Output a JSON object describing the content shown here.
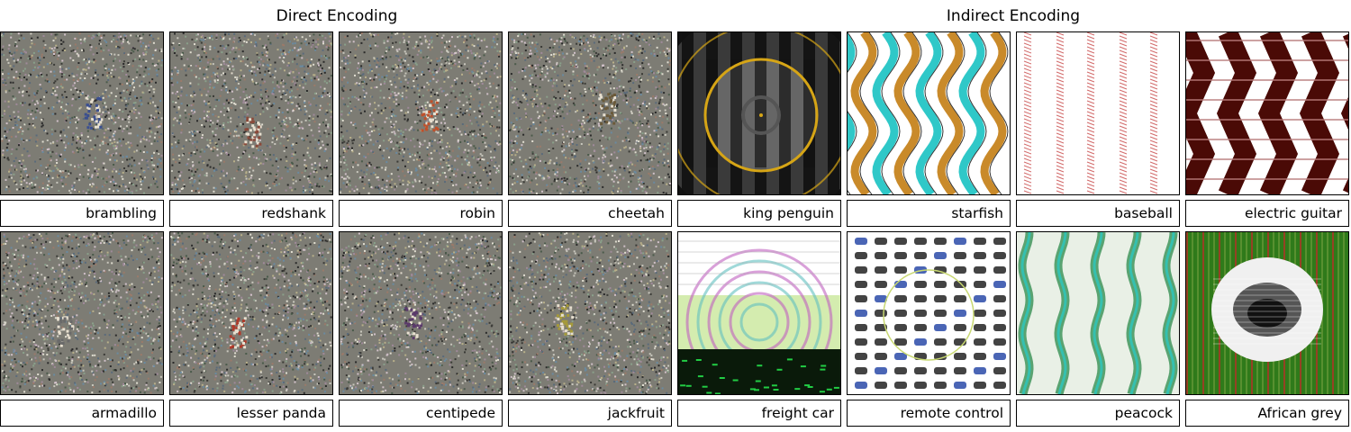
{
  "headings": {
    "direct": "Direct Encoding",
    "indirect": "Indirect Encoding"
  },
  "rows": [
    {
      "items": [
        {
          "label": "brambling",
          "style": "noise",
          "blob": "#3b4f8f"
        },
        {
          "label": "redshank",
          "style": "noise",
          "blob": "#8a4a3a"
        },
        {
          "label": "robin",
          "style": "noise",
          "blob": "#c0502a"
        },
        {
          "label": "cheetah",
          "style": "noise",
          "blob": "#6b5a3a"
        },
        {
          "label": "king penguin",
          "style": "rings-dark",
          "colors": [
            "#111111",
            "#8a8a8a",
            "#d6a516"
          ]
        },
        {
          "label": "starfish",
          "style": "waves",
          "colors": [
            "#2fc8c8",
            "#c98a2a",
            "#ffffff"
          ]
        },
        {
          "label": "baseball",
          "style": "stripes",
          "colors": [
            "#ffffff",
            "#d26a6a"
          ]
        },
        {
          "label": "electric guitar",
          "style": "zigzag",
          "colors": [
            "#4a0a06",
            "#ffffff"
          ]
        }
      ]
    },
    {
      "items": [
        {
          "label": "armadillo",
          "style": "noise",
          "blob": "#6a6a6a"
        },
        {
          "label": "lesser panda",
          "style": "noise",
          "blob": "#b03a2a"
        },
        {
          "label": "centipede",
          "style": "noise",
          "blob": "#5a3a6a"
        },
        {
          "label": "jackfruit",
          "style": "noise",
          "blob": "#a69a3a"
        },
        {
          "label": "freight car",
          "style": "psyche",
          "colors": [
            "#ffffff",
            "#b8e07a",
            "#c060c0",
            "#22cc44"
          ]
        },
        {
          "label": "remote control",
          "style": "grid",
          "colors": [
            "#ffffff",
            "#222222",
            "#2a4aa8"
          ]
        },
        {
          "label": "peacock",
          "style": "peacock",
          "colors": [
            "#e9f0e6",
            "#2a8a4a",
            "#35c0b0"
          ]
        },
        {
          "label": "African grey",
          "style": "target",
          "colors": [
            "#2f7a1a",
            "#c02a2a",
            "#f0f0f0",
            "#111111"
          ]
        }
      ]
    }
  ]
}
